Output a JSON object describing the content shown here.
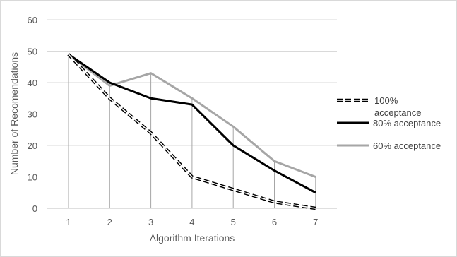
{
  "chart_data": {
    "type": "line",
    "title": "",
    "xlabel": "Algorithm Iterations",
    "ylabel": "Number of Recomendations",
    "categories": [
      "1",
      "2",
      "3",
      "4",
      "5",
      "6",
      "7"
    ],
    "ylim": [
      0,
      60
    ],
    "yticks": [
      "0",
      "10",
      "20",
      "30",
      "40",
      "50",
      "60"
    ],
    "grid": true,
    "legend_position": "right",
    "series": [
      {
        "name": "100% acceptance",
        "values": [
          49,
          35,
          24,
          10,
          6,
          2,
          0
        ],
        "color": "#000000",
        "dash": "dashed-outline"
      },
      {
        "name": "80% acceptance",
        "values": [
          49,
          40,
          35,
          33,
          20,
          12,
          5
        ],
        "color": "#000000",
        "dash": "solid"
      },
      {
        "name": "60% acceptance",
        "values": [
          49,
          39,
          43,
          35,
          26,
          15,
          10
        ],
        "color": "#a6a6a6",
        "dash": "solid"
      }
    ],
    "drop_lines": true
  },
  "legend": {
    "line1_a": "100%",
    "line1_b": "acceptance",
    "line2": "80% acceptance",
    "line3": "60% acceptance"
  }
}
